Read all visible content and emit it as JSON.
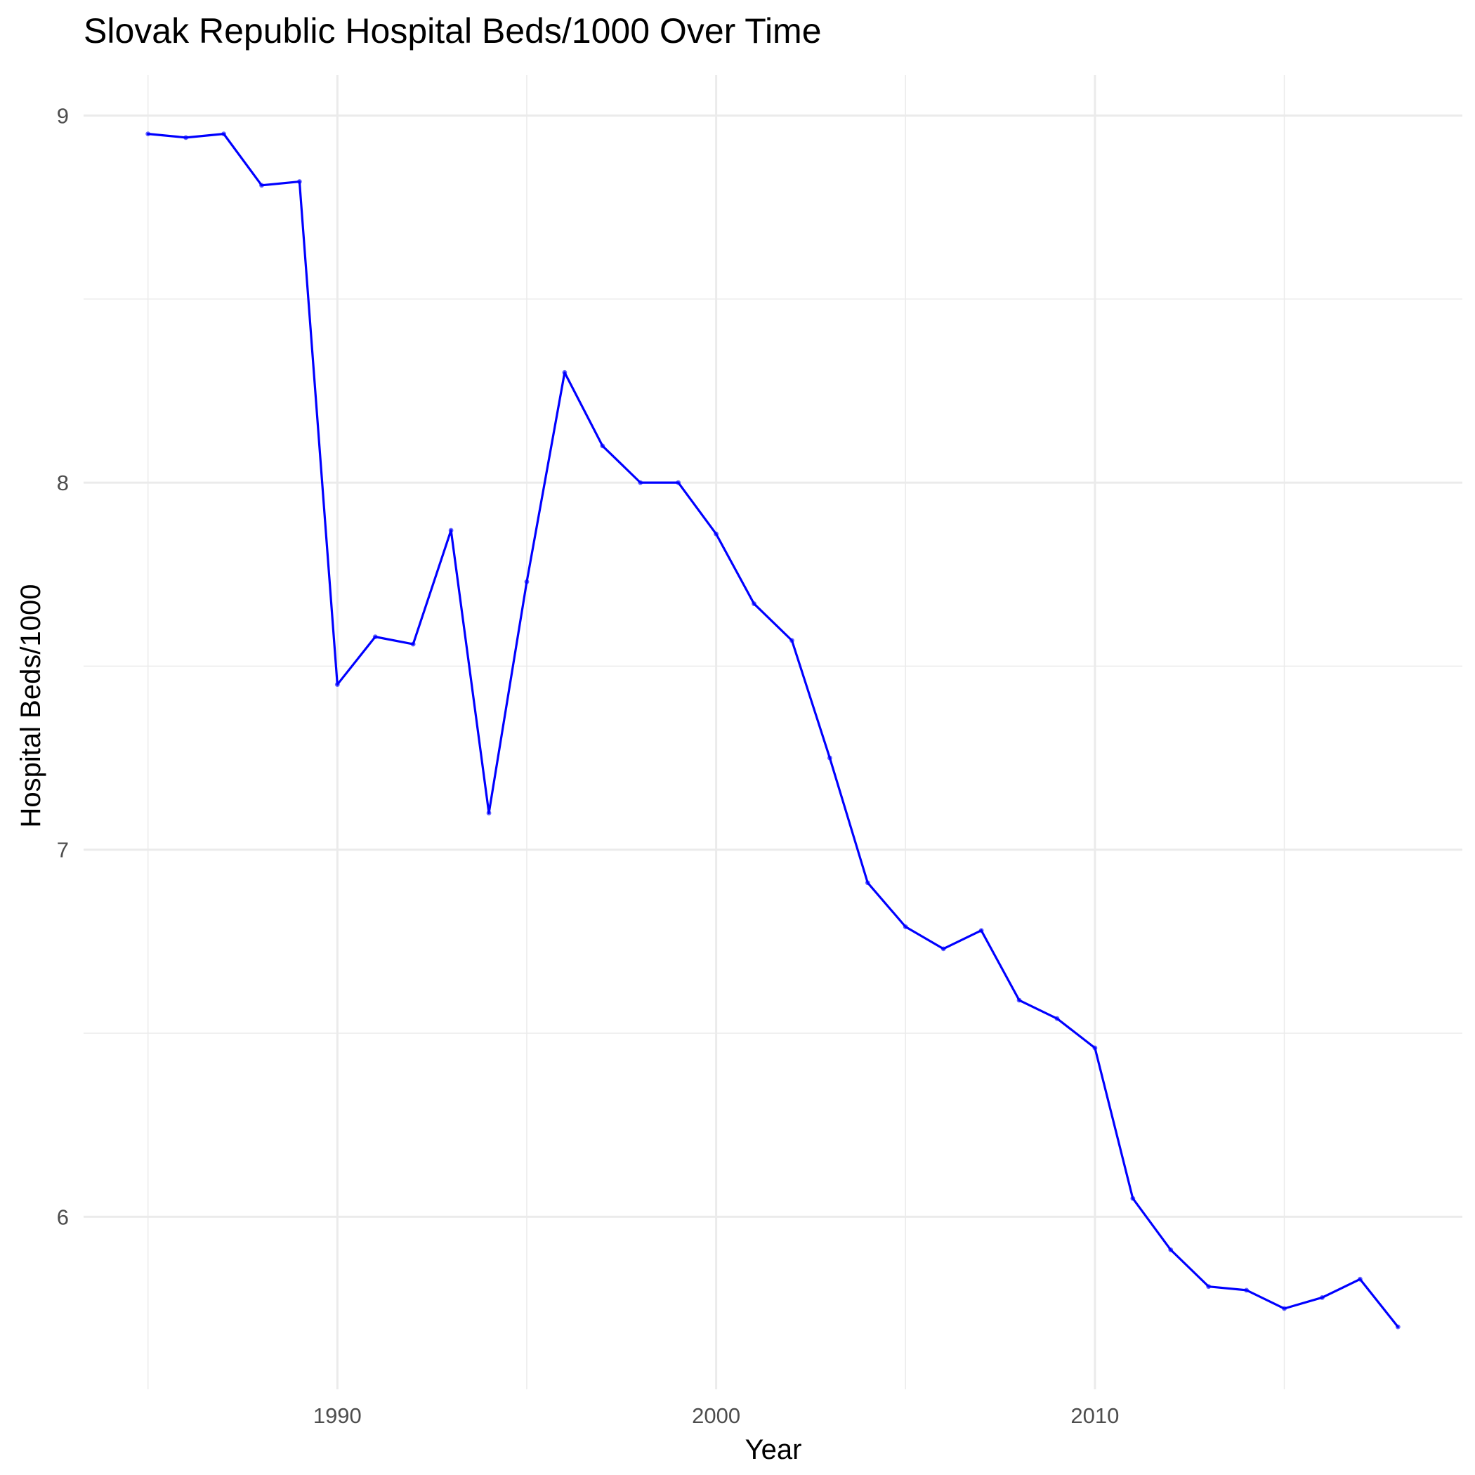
{
  "chart_data": {
    "type": "line",
    "title": "Slovak Republic Hospital Beds/1000 Over Time",
    "xlabel": "Year",
    "ylabel": "Hospital Beds/1000",
    "xlim": [
      1983.3,
      2019.7
    ],
    "ylim": [
      5.53,
      9.11
    ],
    "x_ticks": [
      1990,
      2000,
      2010
    ],
    "x_minor_ticks": [
      1985,
      1995,
      2005,
      2015
    ],
    "y_ticks": [
      6,
      7,
      8,
      9
    ],
    "y_minor_ticks": [
      6.5,
      7.5,
      8.5
    ],
    "grid": true,
    "legend": "none",
    "line_color": "#0000ff",
    "x": [
      1985,
      1986,
      1987,
      1988,
      1989,
      1990,
      1991,
      1992,
      1993,
      1994,
      1995,
      1996,
      1997,
      1998,
      1999,
      2000,
      2001,
      2002,
      2003,
      2004,
      2005,
      2006,
      2007,
      2008,
      2009,
      2010,
      2011,
      2012,
      2013,
      2014,
      2015,
      2016,
      2017,
      2018
    ],
    "values": [
      8.95,
      8.94,
      8.95,
      8.81,
      8.82,
      7.45,
      7.58,
      7.56,
      7.87,
      7.1,
      7.73,
      8.3,
      8.1,
      8.0,
      8.0,
      7.86,
      7.67,
      7.57,
      7.25,
      6.91,
      6.79,
      6.73,
      6.78,
      6.59,
      6.54,
      6.46,
      6.05,
      5.91,
      5.81,
      5.8,
      5.75,
      5.78,
      5.83,
      5.7
    ]
  }
}
